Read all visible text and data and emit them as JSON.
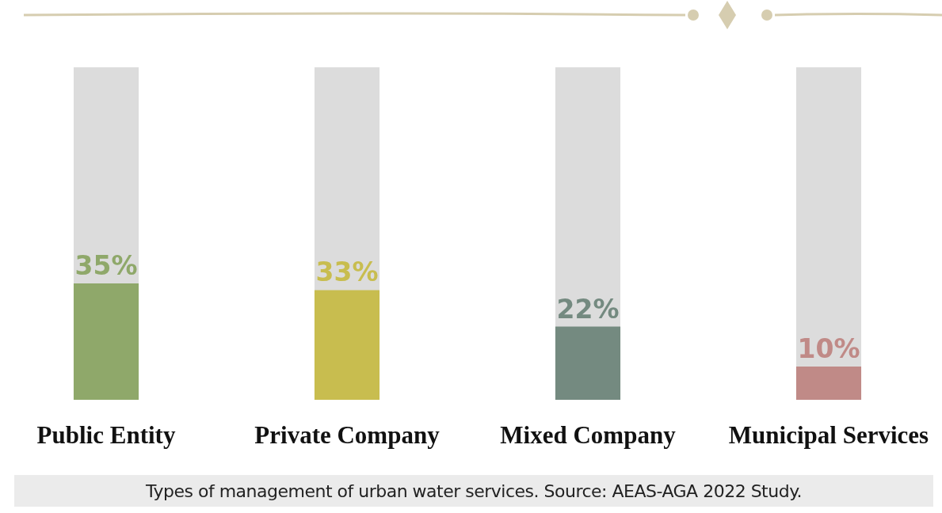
{
  "chart_data": {
    "type": "bar",
    "categories": [
      "Public Entity",
      "Private Company",
      "Mixed Company",
      "Municipal Services"
    ],
    "values": [
      35,
      33,
      22,
      10
    ],
    "colors": [
      "#8fa86a",
      "#c8bd4f",
      "#748a80",
      "#c08a87"
    ],
    "value_labels": [
      "35%",
      "33%",
      "22%",
      "10%"
    ],
    "ylim": [
      0,
      100
    ],
    "tick_labels": "x",
    "grid": false,
    "annotations": [
      "Types of management of urban water services. Source: AEAS-AGA 2022 Study."
    ]
  }
}
